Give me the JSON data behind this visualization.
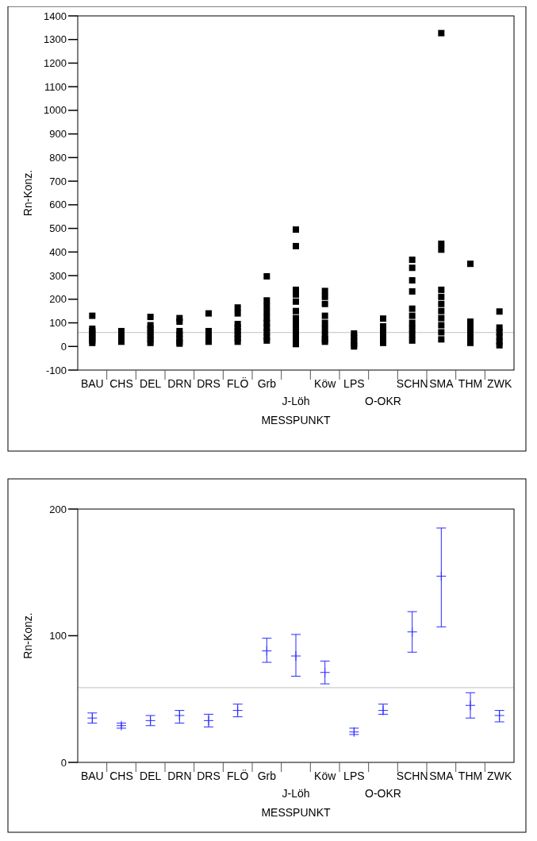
{
  "chart_data": [
    {
      "type": "scatter",
      "xlabel": "MESSPUNKT",
      "ylabel": "Rn-Konz.",
      "categories": [
        "BAU",
        "CHS",
        "DEL",
        "DRN",
        "DRS",
        "FLÖ",
        "Grb",
        "J-Löh",
        "Köw",
        "LPS",
        "O-OKR",
        "SCHN",
        "SMA",
        "THM",
        "ZWK"
      ],
      "series": [
        {
          "color": "#000000",
          "x": [
            "BAU",
            "BAU",
            "BAU",
            "BAU",
            "BAU",
            "BAU",
            "BAU",
            "BAU",
            "CHS",
            "CHS",
            "CHS",
            "CHS",
            "DEL",
            "DEL",
            "DEL",
            "DEL",
            "DEL",
            "DEL",
            "DEL",
            "DRN",
            "DRN",
            "DRN",
            "DRN",
            "DRN",
            "DRN",
            "DRN",
            "DRS",
            "DRS",
            "DRS",
            "DRS",
            "DRS",
            "FLÖ",
            "FLÖ",
            "FLÖ",
            "FLÖ",
            "FLÖ",
            "FLÖ",
            "FLÖ",
            "FLÖ",
            "Grb",
            "Grb",
            "Grb",
            "Grb",
            "Grb",
            "Grb",
            "Grb",
            "Grb",
            "Grb",
            "Grb",
            "J-Löh",
            "J-Löh",
            "J-Löh",
            "J-Löh",
            "J-Löh",
            "J-Löh",
            "J-Löh",
            "J-Löh",
            "J-Löh",
            "J-Löh",
            "J-Löh",
            "J-Löh",
            "Köw",
            "Köw",
            "Köw",
            "Köw",
            "Köw",
            "Köw",
            "Köw",
            "Köw",
            "Köw",
            "LPS",
            "LPS",
            "LPS",
            "LPS",
            "LPS",
            "O-OKR",
            "O-OKR",
            "O-OKR",
            "O-OKR",
            "O-OKR",
            "O-OKR",
            "SCHN",
            "SCHN",
            "SCHN",
            "SCHN",
            "SCHN",
            "SCHN",
            "SCHN",
            "SCHN",
            "SCHN",
            "SCHN",
            "SMA",
            "SMA",
            "SMA",
            "SMA",
            "SMA",
            "SMA",
            "SMA",
            "SMA",
            "SMA",
            "SMA",
            "SMA",
            "THM",
            "THM",
            "THM",
            "THM",
            "THM",
            "THM",
            "ZWK",
            "ZWK",
            "ZWK",
            "ZWK",
            "ZWK",
            "ZWK"
          ],
          "values": [
            130,
            75,
            65,
            55,
            45,
            35,
            25,
            15,
            65,
            50,
            35,
            20,
            125,
            90,
            75,
            60,
            45,
            30,
            15,
            120,
            105,
            65,
            50,
            35,
            20,
            12,
            140,
            65,
            50,
            35,
            20,
            165,
            140,
            95,
            80,
            65,
            50,
            35,
            20,
            297,
            195,
            170,
            145,
            120,
            100,
            80,
            60,
            40,
            25,
            495,
            425,
            240,
            220,
            190,
            150,
            120,
            95,
            70,
            45,
            25,
            10,
            235,
            210,
            180,
            130,
            100,
            75,
            50,
            30,
            20,
            55,
            40,
            25,
            10,
            0,
            118,
            85,
            65,
            45,
            25,
            15,
            367,
            333,
            280,
            233,
            160,
            130,
            100,
            75,
            50,
            25,
            1327,
            435,
            410,
            240,
            210,
            180,
            150,
            120,
            90,
            60,
            30,
            350,
            105,
            80,
            55,
            35,
            15,
            148,
            80,
            60,
            40,
            20,
            5
          ]
        }
      ],
      "ylim": [
        -100,
        1400
      ],
      "yticks": [
        -100,
        0,
        100,
        200,
        300,
        400,
        500,
        600,
        700,
        800,
        900,
        1000,
        1100,
        1200,
        1300,
        1400
      ],
      "marker": "square",
      "grid": false,
      "ref_lines": [
        {
          "axis": "y",
          "value": 59,
          "color": "#c0c0c0"
        }
      ]
    },
    {
      "type": "scatter",
      "xlabel": "MESSPUNKT",
      "ylabel": "Rn-Konz.",
      "categories": [
        "BAU",
        "CHS",
        "DEL",
        "DRN",
        "DRS",
        "FLÖ",
        "Grb",
        "J-Löh",
        "Köw",
        "LPS",
        "O-OKR",
        "SCHN",
        "SMA",
        "THM",
        "ZWK"
      ],
      "series": [
        {
          "color": "#2a2aff",
          "values": [
            35,
            29,
            33,
            37,
            33,
            41,
            88,
            84,
            71,
            24,
            41,
            103,
            147,
            45,
            37
          ],
          "errors": [
            [
              31,
              39
            ],
            [
              27,
              31
            ],
            [
              29,
              37
            ],
            [
              31,
              41
            ],
            [
              28,
              38
            ],
            [
              36,
              46
            ],
            [
              79,
              98
            ],
            [
              68,
              101
            ],
            [
              62,
              80
            ],
            [
              22,
              27
            ],
            [
              38,
              46
            ],
            [
              87,
              119
            ],
            [
              107,
              185
            ],
            [
              35,
              55
            ],
            [
              32,
              41
            ]
          ]
        }
      ],
      "ylim": [
        0,
        200
      ],
      "yticks": [
        0,
        100,
        200
      ],
      "marker": "cross",
      "grid": false,
      "ref_lines": [
        {
          "axis": "y",
          "value": 59,
          "color": "#c0c0c0"
        }
      ]
    }
  ]
}
